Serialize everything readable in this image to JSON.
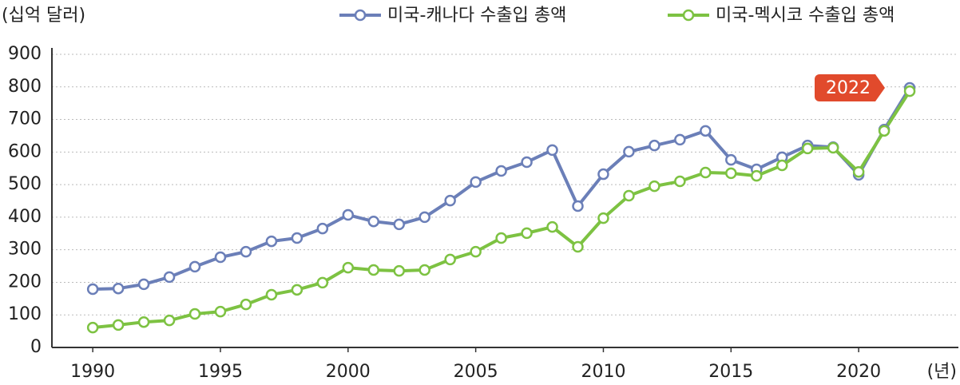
{
  "chart_data": {
    "type": "line",
    "y_label": "(십억 달러)",
    "x_label": "(년)",
    "annotation": "2022",
    "x": [
      1990,
      1991,
      1992,
      1993,
      1994,
      1995,
      1996,
      1997,
      1998,
      1999,
      2000,
      2001,
      2002,
      2003,
      2004,
      2005,
      2006,
      2007,
      2008,
      2009,
      2010,
      2011,
      2012,
      2013,
      2014,
      2015,
      2016,
      2017,
      2018,
      2019,
      2020,
      2021,
      2022
    ],
    "series": [
      {
        "name": "미국-캐나다 수출입 총액",
        "color": "#6b7fb8",
        "values": [
          179,
          181,
          194,
          216,
          248,
          277,
          294,
          326,
          336,
          365,
          407,
          387,
          378,
          400,
          451,
          508,
          542,
          569,
          606,
          434,
          532,
          601,
          620,
          638,
          665,
          576,
          547,
          584,
          620,
          615,
          530,
          669,
          797
        ]
      },
      {
        "name": "미국-멕시코 수출입 총액",
        "color": "#7dc242",
        "values": [
          61,
          69,
          78,
          83,
          103,
          110,
          132,
          162,
          177,
          199,
          245,
          238,
          235,
          238,
          270,
          294,
          336,
          351,
          370,
          309,
          397,
          466,
          495,
          510,
          537,
          535,
          527,
          559,
          611,
          613,
          539,
          665,
          787
        ]
      }
    ],
    "xlim": [
      1988.4,
      2023.5
    ],
    "xticks": [
      1990,
      1995,
      2000,
      2005,
      2010,
      2015,
      2020
    ],
    "ylim": [
      0,
      900
    ],
    "yticks": [
      0,
      100,
      200,
      300,
      400,
      500,
      600,
      700,
      800,
      900
    ],
    "grid": true,
    "legend": "top-right"
  }
}
